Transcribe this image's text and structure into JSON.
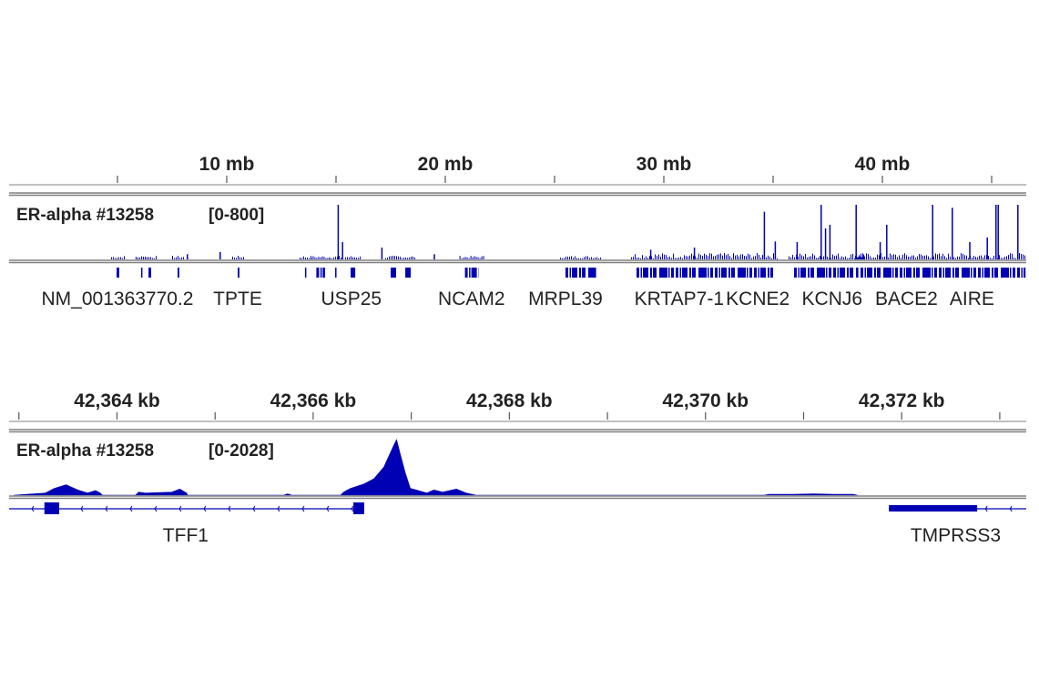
{
  "colors": {
    "signal": "#0000b4",
    "ruler": "#9a9a9a",
    "divider": "#808080",
    "text": "#222222"
  },
  "chart_data": [
    {
      "type": "bar",
      "panel": "genome-wide",
      "x_unit": "mb",
      "xlim": [
        0,
        46.55
      ],
      "ticks": [
        5,
        10,
        15,
        20,
        25,
        30,
        35,
        40,
        45
      ],
      "tick_labels": [
        {
          "value": 10,
          "label": "10 mb"
        },
        {
          "value": 20,
          "label": "20 mb"
        },
        {
          "value": 30,
          "label": "30 mb"
        },
        {
          "value": 40,
          "label": "40 mb"
        }
      ],
      "track": {
        "name": "ER-alpha #13258",
        "range_label": "[0-800]",
        "ylim": [
          0,
          800
        ]
      },
      "peaks": [
        {
          "x": 8.2,
          "y": 76
        },
        {
          "x": 9.7,
          "y": 107
        },
        {
          "x": 15.1,
          "y": 800
        },
        {
          "x": 15.3,
          "y": 253
        },
        {
          "x": 17.1,
          "y": 173
        },
        {
          "x": 19.5,
          "y": 76
        },
        {
          "x": 29.4,
          "y": 142
        },
        {
          "x": 31.4,
          "y": 173
        },
        {
          "x": 34.6,
          "y": 698
        },
        {
          "x": 35.1,
          "y": 262
        },
        {
          "x": 36.1,
          "y": 253
        },
        {
          "x": 37.2,
          "y": 800
        },
        {
          "x": 37.4,
          "y": 453
        },
        {
          "x": 37.6,
          "y": 507
        },
        {
          "x": 38.8,
          "y": 800
        },
        {
          "x": 39.9,
          "y": 253
        },
        {
          "x": 40.2,
          "y": 507
        },
        {
          "x": 42.3,
          "y": 800
        },
        {
          "x": 43.2,
          "y": 756
        },
        {
          "x": 44.0,
          "y": 253
        },
        {
          "x": 44.8,
          "y": 320
        },
        {
          "x": 45.2,
          "y": 800
        },
        {
          "x": 45.3,
          "y": 800
        },
        {
          "x": 46.2,
          "y": 800
        }
      ],
      "features": [
        [
          4.96,
          5.08
        ],
        [
          6.08,
          6.14
        ],
        [
          6.42,
          6.54
        ],
        [
          7.75,
          7.83
        ],
        [
          10.5,
          10.58
        ],
        [
          13.58,
          13.62
        ],
        [
          14.1,
          14.5
        ],
        [
          14.96,
          15.0
        ],
        [
          15.67,
          15.88
        ],
        [
          17.5,
          17.75
        ],
        [
          18.17,
          18.42
        ],
        [
          20.9,
          21.54
        ],
        [
          25.5,
          26.9
        ],
        [
          28.75,
          35.0
        ],
        [
          35.96,
          38.9
        ],
        [
          39.0,
          46.55
        ]
      ],
      "genes": [
        {
          "name": "NM_001363770.2",
          "x": 5.0
        },
        {
          "name": "TPTE",
          "x": 10.5
        },
        {
          "name": "USP25",
          "x": 15.7
        },
        {
          "name": "NCAM2",
          "x": 21.2
        },
        {
          "name": "MRPL39",
          "x": 25.5
        },
        {
          "name": "KRTAP7-1",
          "x": 30.7
        },
        {
          "name": "KCNE2",
          "x": 34.3
        },
        {
          "name": "KCNJ6",
          "x": 37.7
        },
        {
          "name": "BACE2",
          "x": 41.1
        },
        {
          "name": "AIRE",
          "x": 44.1
        }
      ]
    },
    {
      "type": "area",
      "panel": "TFF1 locus",
      "x_unit": "kb",
      "xlim": [
        42362.9,
        42373.27
      ],
      "ticks": [
        42363,
        42364,
        42365,
        42366,
        42367,
        42368,
        42369,
        42370,
        42371,
        42372,
        42373
      ],
      "tick_labels": [
        {
          "value": 42364,
          "label": "42,364 kb"
        },
        {
          "value": 42366,
          "label": "42,366 kb"
        },
        {
          "value": 42368,
          "label": "42,368 kb"
        },
        {
          "value": 42370,
          "label": "42,370 kb"
        },
        {
          "value": 42372,
          "label": "42,372 kb"
        }
      ],
      "track": {
        "name": "ER-alpha #13258",
        "range_label": "[0-2028]",
        "ylim": [
          0,
          2028
        ]
      },
      "profile": [
        [
          42362.95,
          0
        ],
        [
          42363.27,
          78
        ],
        [
          42363.36,
          245
        ],
        [
          42363.48,
          379
        ],
        [
          42363.6,
          190
        ],
        [
          42363.7,
          78
        ],
        [
          42363.78,
          167
        ],
        [
          42363.83,
          78
        ],
        [
          42363.85,
          0
        ],
        [
          42364.19,
          0
        ],
        [
          42364.22,
          111
        ],
        [
          42364.29,
          78
        ],
        [
          42364.56,
          111
        ],
        [
          42364.64,
          223
        ],
        [
          42364.71,
          78
        ],
        [
          42364.72,
          0
        ],
        [
          42365.7,
          0
        ],
        [
          42365.74,
          45
        ],
        [
          42365.78,
          0
        ],
        [
          42366.28,
          0
        ],
        [
          42366.31,
          111
        ],
        [
          42366.38,
          245
        ],
        [
          42366.52,
          412
        ],
        [
          42366.62,
          602
        ],
        [
          42366.72,
          1025
        ],
        [
          42366.77,
          1415
        ],
        [
          42366.82,
          1805
        ],
        [
          42366.85,
          2028
        ],
        [
          42366.89,
          1471
        ],
        [
          42366.94,
          802
        ],
        [
          42366.99,
          245
        ],
        [
          42367.16,
          78
        ],
        [
          42367.23,
          190
        ],
        [
          42367.32,
          111
        ],
        [
          42367.46,
          223
        ],
        [
          42367.56,
          78
        ],
        [
          42367.66,
          0
        ],
        [
          42370.6,
          0
        ],
        [
          42370.65,
          30
        ],
        [
          42370.9,
          30
        ],
        [
          42371.1,
          45
        ],
        [
          42371.3,
          30
        ],
        [
          42371.5,
          30
        ],
        [
          42371.55,
          0
        ]
      ],
      "genes": [
        {
          "name": "TFF1",
          "label_x": 42364.7,
          "strand": "-",
          "line": [
            42362.9,
            42366.52
          ],
          "exons": [
            [
              42363.26,
              42363.41
            ],
            [
              42366.41,
              42366.52
            ]
          ]
        },
        {
          "name": "TMPRSS3",
          "label_x": 42372.55,
          "strand": "-",
          "line": [
            42371.87,
            42373.27
          ],
          "exons": [
            [
              42371.87,
              42372.77
            ]
          ]
        }
      ]
    }
  ]
}
